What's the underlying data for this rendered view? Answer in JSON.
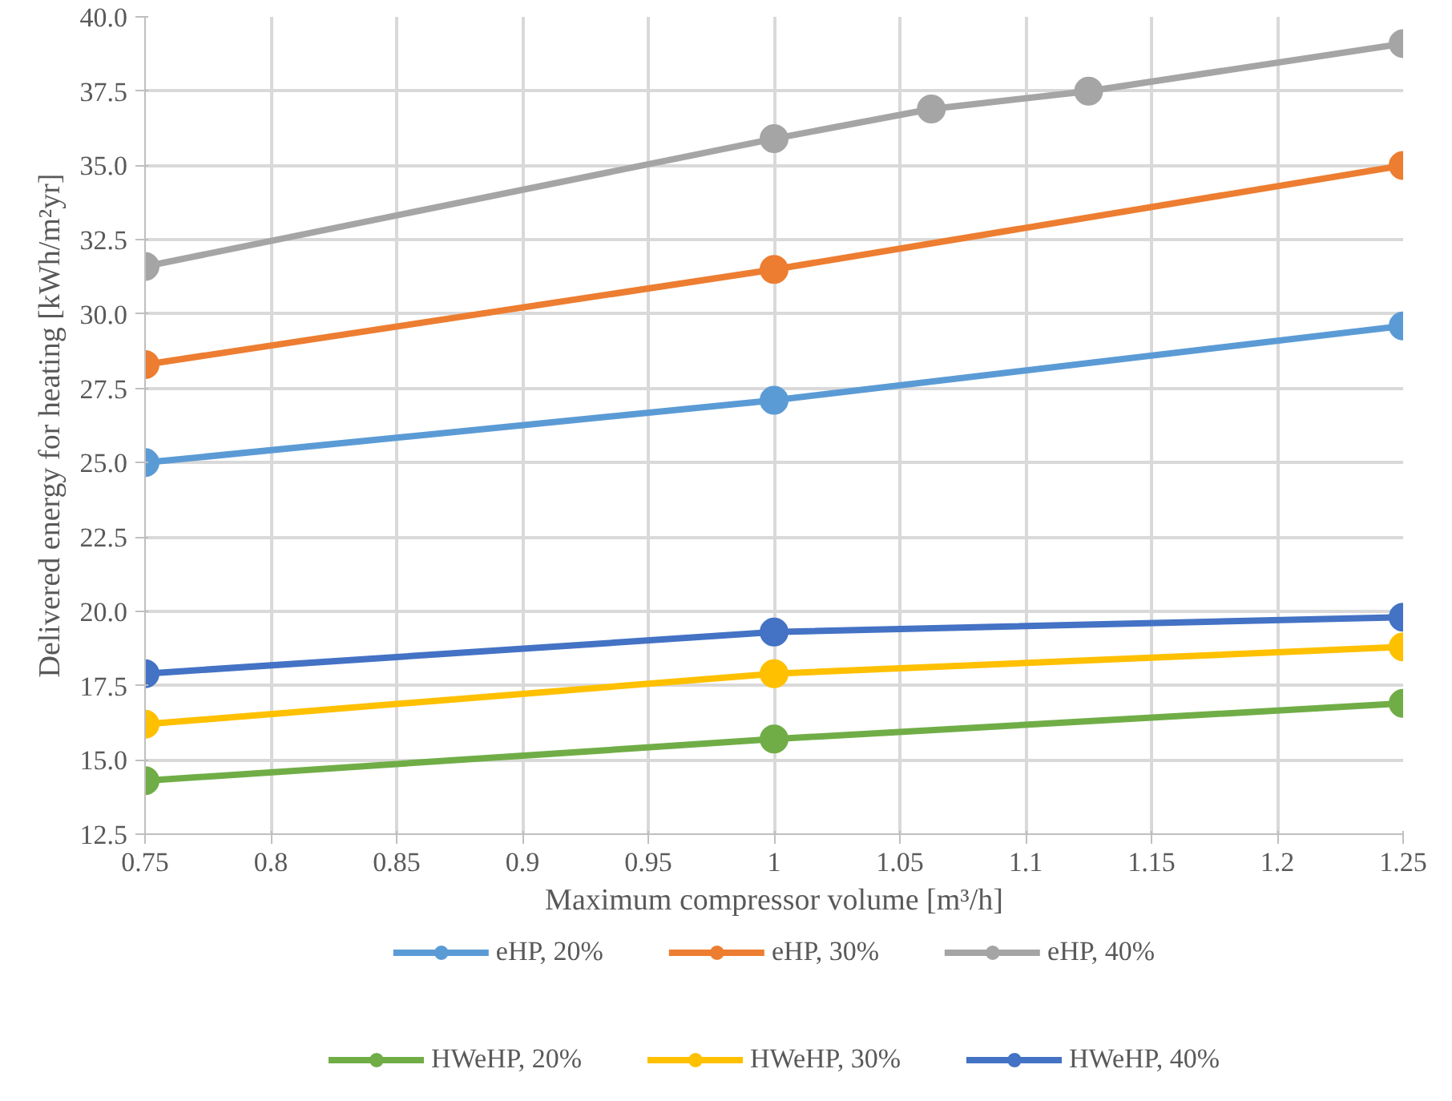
{
  "chart_data": {
    "type": "line",
    "xlabel": "Maximum compressor volume [m³/h]",
    "ylabel": "Delivered energy for heating [kWh/m²yr]",
    "xlim": [
      0.75,
      1.25
    ],
    "xticks": [
      0.75,
      0.8,
      0.85,
      0.9,
      0.95,
      1,
      1.05,
      1.1,
      1.15,
      1.2,
      1.25
    ],
    "ylim": [
      12.5,
      40.0
    ],
    "yticks": [
      {
        "value": 12.5,
        "label": "12.5"
      },
      {
        "value": 15,
        "label": "15.0"
      },
      {
        "value": 17.5,
        "label": "17.5"
      },
      {
        "value": 20,
        "label": "20.0"
      },
      {
        "value": 22.5,
        "label": "22.5"
      },
      {
        "value": 25,
        "label": "25.0"
      },
      {
        "value": 27.5,
        "label": "27.5"
      },
      {
        "value": 30,
        "label": "30.0"
      },
      {
        "value": 32.5,
        "label": "32.5"
      },
      {
        "value": 35,
        "label": "35.0"
      },
      {
        "value": 37.5,
        "label": "37.5"
      },
      {
        "value": 40,
        "label": "40.0"
      }
    ],
    "grid": true,
    "legend": "bottom",
    "marker": "circle",
    "line_style": "solid",
    "series": [
      {
        "name": "eHP, 20%",
        "color": "#5b9bd5",
        "x": [
          0.75,
          1,
          1.25
        ],
        "values": [
          25.0,
          27.1,
          29.6
        ]
      },
      {
        "name": "eHP, 30%",
        "color": "#ed7d31",
        "x": [
          0.75,
          1,
          1.25
        ],
        "values": [
          28.3,
          31.5,
          35.0
        ]
      },
      {
        "name": "eHP, 40%",
        "color": "#a5a5a5",
        "x": [
          0.75,
          1,
          1.0625,
          1.125,
          1.25
        ],
        "values": [
          31.6,
          35.9,
          36.9,
          37.5,
          39.1
        ]
      },
      {
        "name": "HWeHP, 20%",
        "color": "#70ad47",
        "x": [
          0.75,
          1,
          1.25
        ],
        "values": [
          14.3,
          15.7,
          16.9
        ]
      },
      {
        "name": "HWeHP, 30%",
        "color": "#ffc000",
        "x": [
          0.75,
          1,
          1.25
        ],
        "values": [
          16.2,
          17.9,
          18.8
        ]
      },
      {
        "name": "HWeHP, 40%",
        "color": "#4472c4",
        "x": [
          0.75,
          1,
          1.25
        ],
        "values": [
          17.9,
          19.3,
          19.8
        ]
      }
    ]
  }
}
